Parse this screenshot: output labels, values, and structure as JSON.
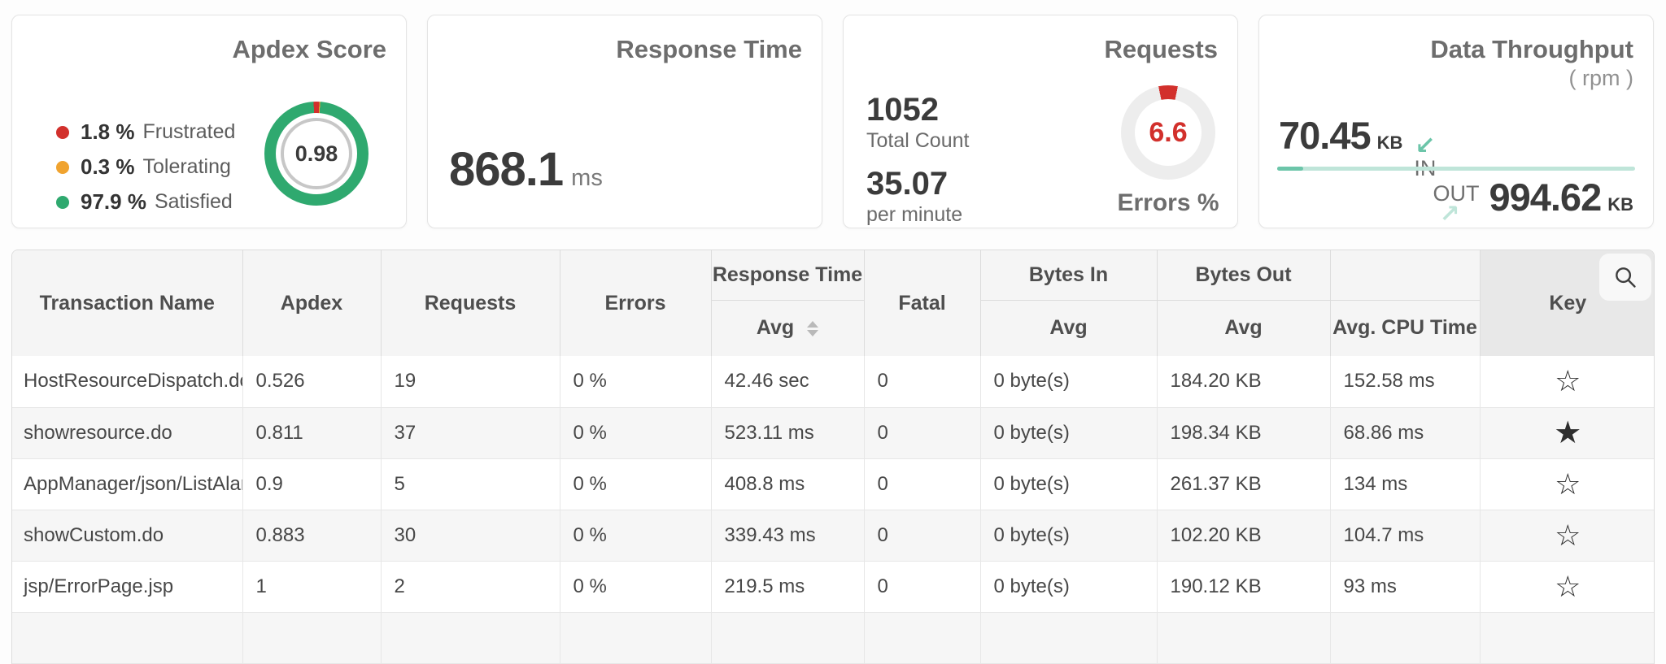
{
  "colors": {
    "green": "#2fa96f",
    "red": "#d2302c",
    "orange": "#f0a32f",
    "teal": "#6cc5a9",
    "teal-light": "#bfe5d9",
    "donut-track": "#ededed"
  },
  "cards": {
    "apdex": {
      "title": "Apdex Score",
      "score": "0.98",
      "legend": [
        {
          "value": "1.8 %",
          "label": "Frustrated"
        },
        {
          "value": "0.3 %",
          "label": "Tolerating"
        },
        {
          "value": "97.9 %",
          "label": "Satisfied"
        }
      ],
      "chart": {
        "type": "donut",
        "frustrated_pct": 1.8,
        "tolerating_pct": 0.3,
        "satisfied_pct": 97.9
      }
    },
    "response_time": {
      "title": "Response Time",
      "value": "868.1",
      "unit": "ms"
    },
    "requests": {
      "title": "Requests",
      "total_count": "1052",
      "total_label": "Total Count",
      "per_minute": "35.07",
      "per_minute_label": "per minute",
      "errors_pct": "6.6",
      "errors_label": "Errors %",
      "chart": {
        "type": "donut",
        "errors_pct": 6.6
      }
    },
    "data_throughput": {
      "title": "Data Throughput",
      "subtitle": "( rpm )",
      "in_value": "70.45",
      "in_unit": "KB",
      "in_label": "IN",
      "out_label": "OUT",
      "out_value": "994.62",
      "out_unit": "KB"
    }
  },
  "table": {
    "header": {
      "transaction": "Transaction Name",
      "apdex": "Apdex",
      "requests": "Requests",
      "errors": "Errors",
      "response_time": "Response Time",
      "response_sub": "Avg",
      "fatal": "Fatal",
      "bytes_in": "Bytes In",
      "bytes_in_sub": "Avg",
      "bytes_out": "Bytes Out",
      "bytes_out_sub": "Avg",
      "cpu_sub": "Avg. CPU Time",
      "key": "Key"
    },
    "fields": [
      "name",
      "apdex",
      "requests",
      "errors",
      "response_avg",
      "fatal",
      "bytes_in",
      "bytes_out",
      "cpu",
      "key"
    ],
    "rows": [
      {
        "name": "HostResourceDispatch.do",
        "apdex": "0.526",
        "requests": "19",
        "errors": "0 %",
        "response_avg": "42.46 sec",
        "fatal": "0",
        "bytes_in": "0 byte(s)",
        "bytes_out": "184.20 KB",
        "cpu": "152.58 ms",
        "key": false
      },
      {
        "name": "showresource.do",
        "apdex": "0.811",
        "requests": "37",
        "errors": "0 %",
        "response_avg": "523.11 ms",
        "fatal": "0",
        "bytes_in": "0 byte(s)",
        "bytes_out": "198.34 KB",
        "cpu": "68.86 ms",
        "key": true
      },
      {
        "name": "AppManager/json/ListAlarms",
        "apdex": "0.9",
        "requests": "5",
        "errors": "0 %",
        "response_avg": "408.8 ms",
        "fatal": "0",
        "bytes_in": "0 byte(s)",
        "bytes_out": "261.37 KB",
        "cpu": "134 ms",
        "key": false
      },
      {
        "name": "showCustom.do",
        "apdex": "0.883",
        "requests": "30",
        "errors": "0 %",
        "response_avg": "339.43 ms",
        "fatal": "0",
        "bytes_in": "0 byte(s)",
        "bytes_out": "102.20 KB",
        "cpu": "104.7 ms",
        "key": false
      },
      {
        "name": "jsp/ErrorPage.jsp",
        "apdex": "1",
        "requests": "2",
        "errors": "0 %",
        "response_avg": "219.5 ms",
        "fatal": "0",
        "bytes_in": "0 byte(s)",
        "bytes_out": "190.12 KB",
        "cpu": "93 ms",
        "key": false
      }
    ]
  }
}
